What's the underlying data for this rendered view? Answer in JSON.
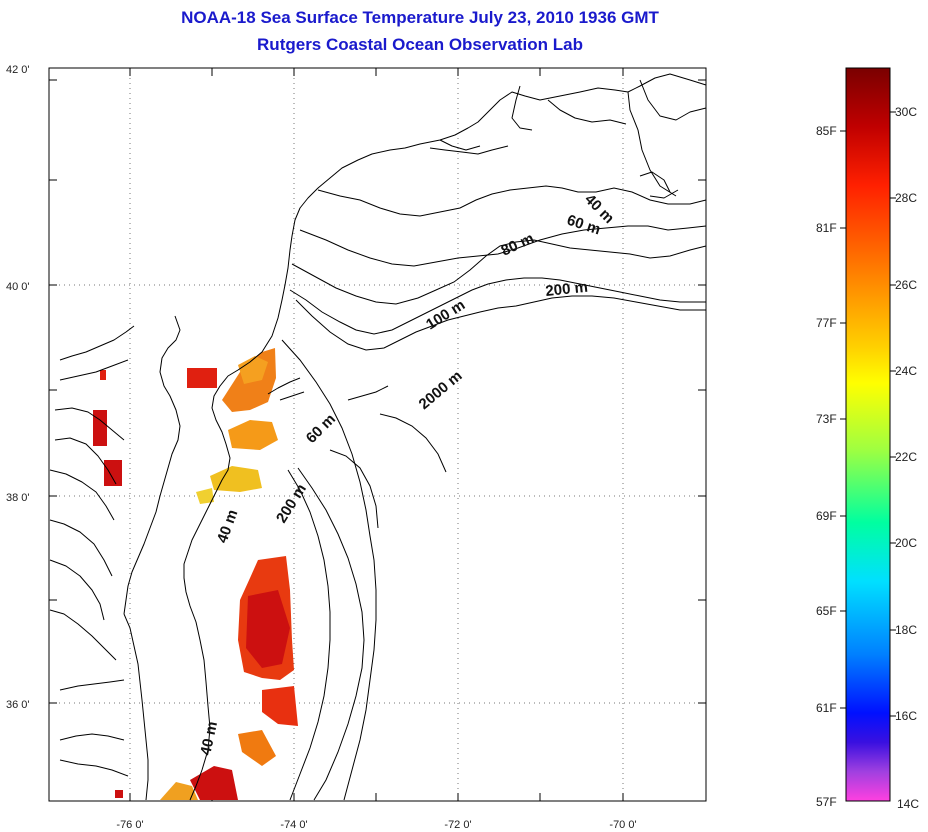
{
  "header": {
    "title": "NOAA-18 Sea Surface Temperature July 23, 2010 1936 GMT",
    "subtitle": "Rutgers Coastal Ocean Observation Lab"
  },
  "map": {
    "lat_labels": [
      "42 0'",
      "40 0'",
      "38 0'",
      "36 0'"
    ],
    "lon_labels": [
      "-76 0'",
      "-74 0'",
      "-72 0'",
      "-70 0'"
    ],
    "isobath_labels": [
      "40 m",
      "60 m",
      "80 m",
      "100 m",
      "200 m",
      "2000 m",
      "60 m",
      "200 m",
      "40 m",
      "40 m"
    ],
    "coastline_color": "#000000",
    "sst_colors": [
      "#cc1010",
      "#e83a10",
      "#f06a10",
      "#f59a18",
      "#f0c020",
      "#e02010"
    ]
  },
  "colorbar": {
    "fahrenheit_labels": [
      "85F",
      "81F",
      "77F",
      "73F",
      "69F",
      "65F",
      "61F",
      "57F"
    ],
    "celsius_labels": [
      "30C",
      "28C",
      "26C",
      "24C",
      "22C",
      "20C",
      "18C",
      "16C",
      "14C"
    ],
    "gradient_stops": [
      "#7a0000",
      "#c00000",
      "#ff2000",
      "#ff8000",
      "#ffd000",
      "#ffff00",
      "#a0ff40",
      "#00ffa0",
      "#00e0ff",
      "#0080ff",
      "#0010ff",
      "#3a10e0",
      "#a040e0",
      "#ff40e0"
    ]
  }
}
